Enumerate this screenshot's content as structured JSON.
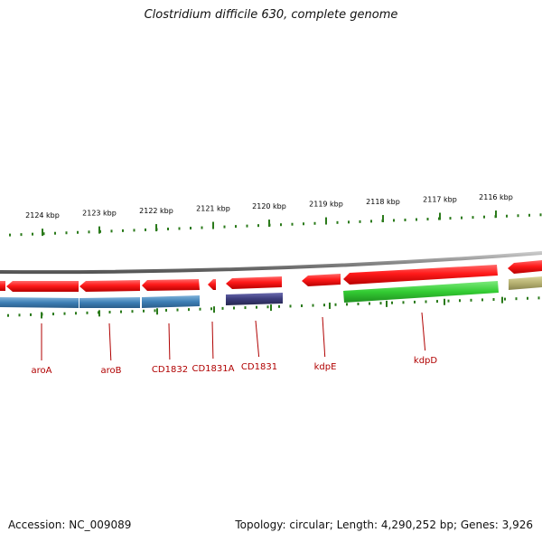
{
  "title": "Clostridium difficile 630, complete genome",
  "footer": {
    "accession": "Accession: NC_009089",
    "summary": "Topology: circular; Length: 4,290,252 bp; Genes: 3,926"
  },
  "ruler": {
    "ticks": [
      "2124 kbp",
      "2123 kbp",
      "2122 kbp",
      "2121 kbp",
      "2120 kbp",
      "2119 kbp",
      "2118 kbp",
      "2117 kbp",
      "2116 kbp"
    ]
  },
  "genes": [
    {
      "label": "aroA"
    },
    {
      "label": "aroB"
    },
    {
      "label": "CD1832"
    },
    {
      "label": "CD1831A"
    },
    {
      "label": "CD1831"
    },
    {
      "label": "kdpE"
    },
    {
      "label": "kdpD"
    }
  ],
  "colors": {
    "cds": "#ee1111",
    "backbone": "#888888",
    "tick": "#2a7a1a",
    "label": "#b00000",
    "feature_blue": "#3d7fb5",
    "feature_navy": "#3b3b7a",
    "feature_green": "#33cc33",
    "feature_olive": "#b5b070"
  }
}
